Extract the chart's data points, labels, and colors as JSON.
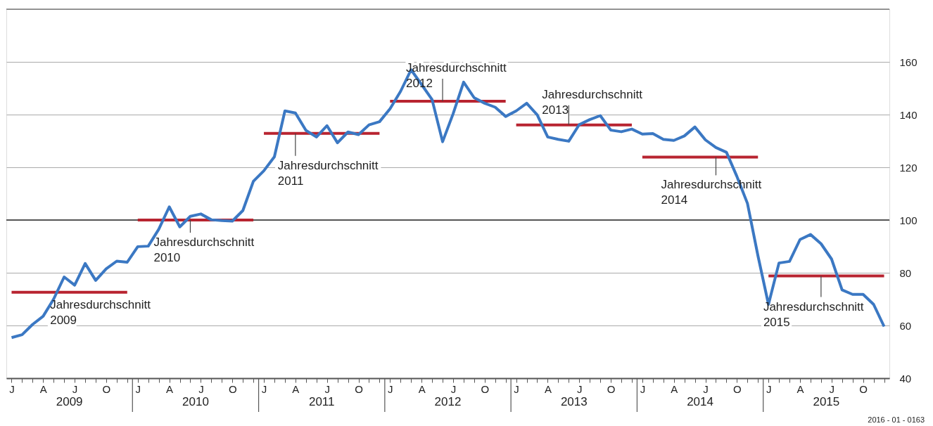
{
  "chart_data": {
    "type": "line",
    "categories": [
      "J",
      null,
      null,
      "A",
      null,
      null,
      "J",
      null,
      null,
      "O",
      null,
      null,
      "J",
      null,
      null,
      "A",
      null,
      null,
      "J",
      null,
      null,
      "O",
      null,
      null,
      "J",
      null,
      null,
      "A",
      null,
      null,
      "J",
      null,
      null,
      "O",
      null,
      null,
      "J",
      null,
      null,
      "A",
      null,
      null,
      "J",
      null,
      null,
      "O",
      null,
      null,
      "J",
      null,
      null,
      "A",
      null,
      null,
      "J",
      null,
      null,
      "O",
      null,
      null,
      "J",
      null,
      null,
      "A",
      null,
      null,
      "J",
      null,
      null,
      "O",
      null,
      null,
      "J",
      null,
      null,
      "A",
      null,
      null,
      "J",
      null,
      null,
      "O",
      null,
      null
    ],
    "series": [
      {
        "color": "#3b78c3",
        "values": [
          55.4,
          56.5,
          60.4,
          63.5,
          70.0,
          78.4,
          75.3,
          83.5,
          77.1,
          81.5,
          84.4,
          84.0,
          89.9,
          90.1,
          96.5,
          105.0,
          97.4,
          101.4,
          102.3,
          100.1,
          99.8,
          99.6,
          103.6,
          114.7,
          118.7,
          124.0,
          141.4,
          140.6,
          134.0,
          131.5,
          135.8,
          129.3,
          133.4,
          132.4,
          136.1,
          137.3,
          142.2,
          148.8,
          157.0,
          151.4,
          145.7,
          129.7,
          140.3,
          152.3,
          146.4,
          144.3,
          142.8,
          139.3,
          141.4,
          144.3,
          139.9,
          131.5,
          130.6,
          129.9,
          136.2,
          138.1,
          139.6,
          134.1,
          133.5,
          134.5,
          132.6,
          132.8,
          130.6,
          130.2,
          131.9,
          135.3,
          130.4,
          127.5,
          125.7,
          116.5,
          106.3,
          86.4,
          68.0,
          83.7,
          84.3,
          92.6,
          94.5,
          91.0,
          85.2,
          73.5,
          71.8,
          71.8,
          68.0,
          59.6
        ]
      },
      {
        "color": "#b82430",
        "values": [
          72.6,
          72.6,
          72.6,
          72.6,
          72.6,
          72.6,
          72.6,
          72.6,
          72.6,
          72.6,
          72.6,
          72.6,
          null,
          null,
          null,
          null,
          null,
          null,
          null,
          null,
          null,
          null,
          null,
          null,
          null,
          null,
          null,
          null,
          null,
          null,
          null,
          null,
          null,
          null,
          null,
          null,
          null,
          null,
          null,
          null,
          null,
          null,
          null,
          null,
          null,
          null,
          null,
          null,
          null,
          null,
          null,
          null,
          null,
          null,
          null,
          null,
          null,
          null,
          null,
          null,
          null,
          null,
          null,
          null,
          null,
          null,
          null,
          null,
          null,
          null,
          null,
          null,
          null,
          null,
          null,
          null,
          null,
          null,
          null,
          null,
          null,
          null,
          null,
          null
        ]
      },
      {
        "color": "#b82430",
        "values": [
          null,
          null,
          null,
          null,
          null,
          null,
          null,
          null,
          null,
          null,
          null,
          null,
          100,
          100,
          100,
          100,
          100,
          100,
          100,
          100,
          100,
          100,
          100,
          100,
          null,
          null,
          null,
          null,
          null,
          null,
          null,
          null,
          null,
          null,
          null,
          null,
          null,
          null,
          null,
          null,
          null,
          null,
          null,
          null,
          null,
          null,
          null,
          null,
          null,
          null,
          null,
          null,
          null,
          null,
          null,
          null,
          null,
          null,
          null,
          null,
          null,
          null,
          null,
          null,
          null,
          null,
          null,
          null,
          null,
          null,
          null,
          null,
          null,
          null,
          null,
          null,
          null,
          null,
          null,
          null,
          null,
          null,
          null,
          null
        ]
      },
      {
        "color": "#b82430",
        "values": [
          null,
          null,
          null,
          null,
          null,
          null,
          null,
          null,
          null,
          null,
          null,
          null,
          null,
          null,
          null,
          null,
          null,
          null,
          null,
          null,
          null,
          null,
          null,
          null,
          132.9,
          132.9,
          132.9,
          132.9,
          132.9,
          132.9,
          132.9,
          132.9,
          132.9,
          132.9,
          132.9,
          132.9,
          null,
          null,
          null,
          null,
          null,
          null,
          null,
          null,
          null,
          null,
          null,
          null,
          null,
          null,
          null,
          null,
          null,
          null,
          null,
          null,
          null,
          null,
          null,
          null,
          null,
          null,
          null,
          null,
          null,
          null,
          null,
          null,
          null,
          null,
          null,
          null,
          null,
          null,
          null,
          null,
          null,
          null,
          null,
          null,
          null,
          null,
          null,
          null
        ]
      },
      {
        "color": "#b82430",
        "values": [
          null,
          null,
          null,
          null,
          null,
          null,
          null,
          null,
          null,
          null,
          null,
          null,
          null,
          null,
          null,
          null,
          null,
          null,
          null,
          null,
          null,
          null,
          null,
          null,
          null,
          null,
          null,
          null,
          null,
          null,
          null,
          null,
          null,
          null,
          null,
          null,
          145.1,
          145.1,
          145.1,
          145.1,
          145.1,
          145.1,
          145.1,
          145.1,
          145.1,
          145.1,
          145.1,
          145.1,
          null,
          null,
          null,
          null,
          null,
          null,
          null,
          null,
          null,
          null,
          null,
          null,
          null,
          null,
          null,
          null,
          null,
          null,
          null,
          null,
          null,
          null,
          null,
          null,
          null,
          null,
          null,
          null,
          null,
          null,
          null,
          null,
          null,
          null,
          null,
          null
        ]
      },
      {
        "color": "#b82430",
        "values": [
          null,
          null,
          null,
          null,
          null,
          null,
          null,
          null,
          null,
          null,
          null,
          null,
          null,
          null,
          null,
          null,
          null,
          null,
          null,
          null,
          null,
          null,
          null,
          null,
          null,
          null,
          null,
          null,
          null,
          null,
          null,
          null,
          null,
          null,
          null,
          null,
          null,
          null,
          null,
          null,
          null,
          null,
          null,
          null,
          null,
          null,
          null,
          null,
          136.1,
          136.1,
          136.1,
          136.1,
          136.1,
          136.1,
          136.1,
          136.1,
          136.1,
          136.1,
          136.1,
          136.1,
          null,
          null,
          null,
          null,
          null,
          null,
          null,
          null,
          null,
          null,
          null,
          null,
          null,
          null,
          null,
          null,
          null,
          null,
          null,
          null,
          null,
          null,
          null,
          null
        ]
      },
      {
        "color": "#b82430",
        "values": [
          null,
          null,
          null,
          null,
          null,
          null,
          null,
          null,
          null,
          null,
          null,
          null,
          null,
          null,
          null,
          null,
          null,
          null,
          null,
          null,
          null,
          null,
          null,
          null,
          null,
          null,
          null,
          null,
          null,
          null,
          null,
          null,
          null,
          null,
          null,
          null,
          null,
          null,
          null,
          null,
          null,
          null,
          null,
          null,
          null,
          null,
          null,
          null,
          null,
          null,
          null,
          null,
          null,
          null,
          null,
          null,
          null,
          null,
          null,
          null,
          123.9,
          123.9,
          123.9,
          123.9,
          123.9,
          123.9,
          123.9,
          123.9,
          123.9,
          123.9,
          123.9,
          123.9,
          null,
          null,
          null,
          null,
          null,
          null,
          null,
          null,
          null,
          null,
          null,
          null
        ]
      },
      {
        "color": "#b82430",
        "values": [
          null,
          null,
          null,
          null,
          null,
          null,
          null,
          null,
          null,
          null,
          null,
          null,
          null,
          null,
          null,
          null,
          null,
          null,
          null,
          null,
          null,
          null,
          null,
          null,
          null,
          null,
          null,
          null,
          null,
          null,
          null,
          null,
          null,
          null,
          null,
          null,
          null,
          null,
          null,
          null,
          null,
          null,
          null,
          null,
          null,
          null,
          null,
          null,
          null,
          null,
          null,
          null,
          null,
          null,
          null,
          null,
          null,
          null,
          null,
          null,
          null,
          null,
          null,
          null,
          null,
          null,
          null,
          null,
          null,
          null,
          null,
          null,
          78.8,
          78.8,
          78.8,
          78.8,
          78.8,
          78.8,
          78.8,
          78.8,
          78.8,
          78.8,
          78.8,
          78.8
        ]
      }
    ],
    "ylim": [
      40,
      180
    ],
    "yticks": [
      40,
      60,
      80,
      100,
      120,
      140,
      160,
      {
        "value": 180,
        "label": null
      }
    ],
    "grid": "y",
    "ref_lines": [
      {
        "axis": "y",
        "value": 100,
        "color": "#555555"
      }
    ],
    "marker": "none",
    "line_style": "solid",
    "annotations": [
      "Jahresdurchschnitt 2009",
      {
        "text": "Jahresdurchschnitt 2010",
        "y": 100
      },
      {
        "text": "Jahresdurchschnitt 2011",
        "y": 132.9
      },
      {
        "text": "Jahresdurchschnitt 2012",
        "y": 145.1
      },
      {
        "text": "Jahresdurchschnitt 2013",
        "y": 136.1
      },
      {
        "text": "Jahresdurchschnitt 2014",
        "y": 123.9
      },
      {
        "text": "Jahresdurchschnitt 2015",
        "y": 78.8
      },
      "2009",
      "2010",
      "2011",
      "2012",
      "2013",
      "2014",
      "2015",
      "2016 - 01 - 0163"
    ]
  }
}
